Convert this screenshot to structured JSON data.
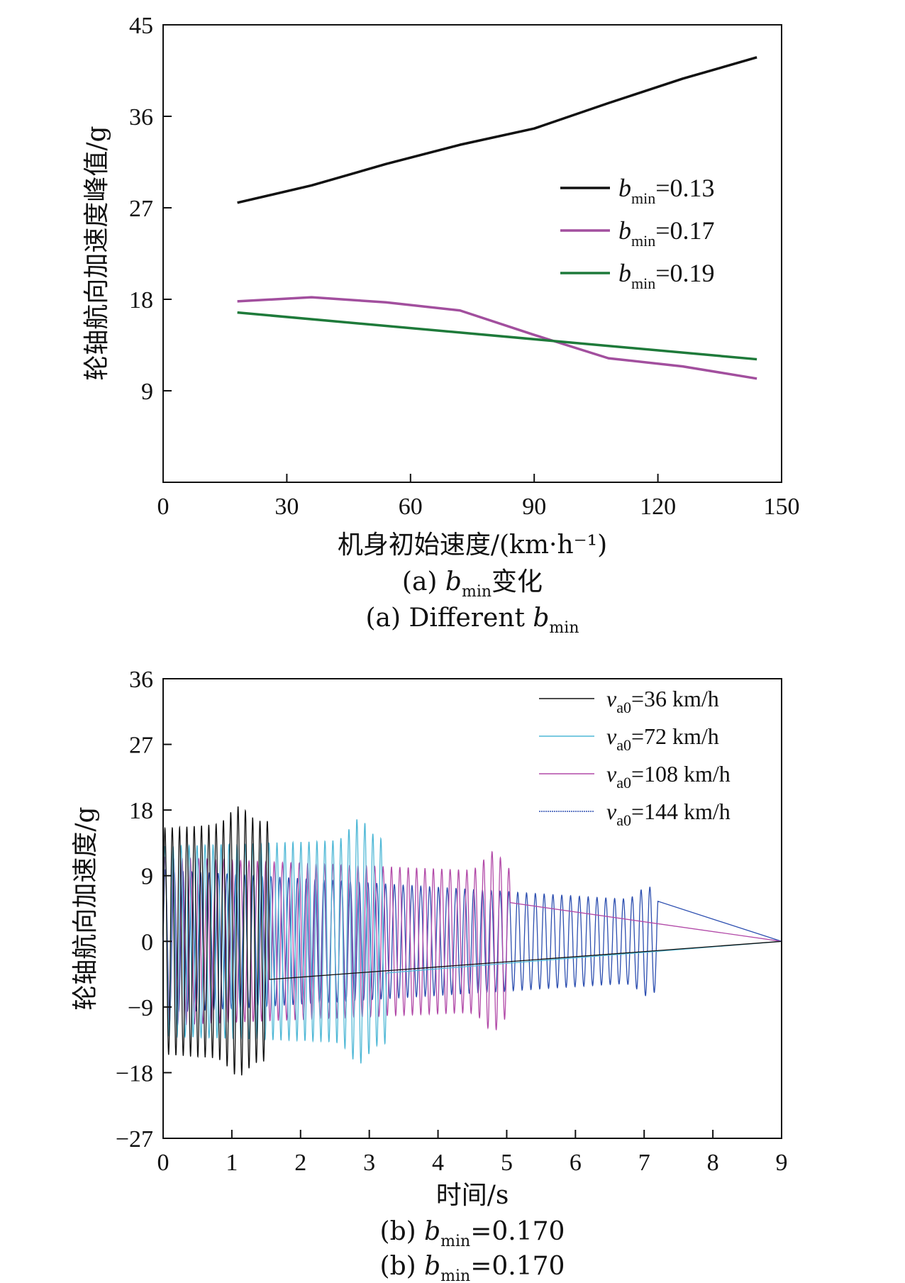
{
  "chart_data": [
    {
      "type": "line",
      "xlabel": "机身初始速度/(km·h⁻¹)",
      "ylabel": "轮轴航向加速度峰值/g",
      "xlim": [
        0,
        150
      ],
      "ylim": [
        0,
        45
      ],
      "xticks": [
        "0",
        "30",
        "60",
        "90",
        "120",
        "150"
      ],
      "yticks": [
        "9",
        "18",
        "27",
        "36",
        "45"
      ],
      "caption_cn": {
        "prefix": "(a) ",
        "var": "b",
        "sub": "min",
        "suffix": "变化"
      },
      "caption_en": {
        "prefix": "(a) Different ",
        "var": "b",
        "sub": "min",
        "suffix": ""
      },
      "legend_position": "right",
      "series": [
        {
          "name": "b_min=0.13",
          "label_var": "b",
          "label_sub": "min",
          "label_rest": "=0.13",
          "color": "#111111",
          "x": [
            18,
            36,
            54,
            72,
            90,
            108,
            126,
            144
          ],
          "y": [
            27.5,
            29.2,
            31.3,
            33.2,
            34.8,
            37.3,
            39.7,
            41.8
          ]
        },
        {
          "name": "b_min=0.17",
          "label_var": "b",
          "label_sub": "min",
          "label_rest": "=0.17",
          "color": "#a24f9e",
          "x": [
            18,
            36,
            54,
            72,
            90,
            108,
            126,
            144
          ],
          "y": [
            17.8,
            18.2,
            17.7,
            16.9,
            14.5,
            12.2,
            11.4,
            10.2
          ]
        },
        {
          "name": "b_min=0.19",
          "label_var": "b",
          "label_sub": "min",
          "label_rest": "=0.19",
          "color": "#1e7a3a",
          "x": [
            18,
            144
          ],
          "y": [
            16.7,
            12.1
          ]
        }
      ]
    },
    {
      "type": "line",
      "xlabel": "时间/s",
      "ylabel": "轮轴航向加速度/g",
      "xlim": [
        0,
        9
      ],
      "ylim": [
        -27,
        36
      ],
      "xticks": [
        "0",
        "1",
        "2",
        "3",
        "4",
        "5",
        "6",
        "7",
        "8",
        "9"
      ],
      "yticks": [
        "−27",
        "−18",
        "−9",
        "0",
        "9",
        "18",
        "27",
        "36"
      ],
      "caption_cn": {
        "prefix": "(b) ",
        "var": "b",
        "sub": "min",
        "suffix": "=0.170"
      },
      "caption_en": {
        "prefix": "(b) ",
        "var": "b",
        "sub": "min",
        "suffix": "=0.170"
      },
      "legend_position": "top-right",
      "series": [
        {
          "name": "v_a0=36 km/h",
          "label_var": "v",
          "label_sub": "a0",
          "label_rest": "=36 km/h",
          "color": "#111111",
          "duration": 1.55,
          "frequency": 9.4,
          "amp_start": 15.5,
          "amp_end": 16.5,
          "amp_peak": 18.5,
          "peak_t": 1.1
        },
        {
          "name": "v_a0=72 km/h",
          "label_var": "v",
          "label_sub": "a0",
          "label_rest": "=72 km/h",
          "color": "#4fb8d6",
          "duration": 3.25,
          "frequency": 8.6,
          "amp_start": 13.0,
          "amp_end": 14.0,
          "amp_peak": 16.8,
          "peak_t": 2.85
        },
        {
          "name": "v_a0=108 km/h",
          "label_var": "v",
          "label_sub": "a0",
          "label_rest": "=108 km/h",
          "color": "#b24aa8",
          "duration": 5.05,
          "frequency": 8.2,
          "amp_start": 11.5,
          "amp_end": 9.5,
          "amp_peak": 12.3,
          "peak_t": 4.8
        },
        {
          "name": "v_a0=144 km/h",
          "label_var": "v",
          "label_sub": "a0",
          "label_rest": "=144 km/h",
          "color": "#2d4fb0",
          "duration": 7.2,
          "frequency": 7.8,
          "amp_start": 9.8,
          "amp_end": 5.5,
          "amp_peak": 7.5,
          "peak_t": 7.05
        }
      ]
    }
  ]
}
